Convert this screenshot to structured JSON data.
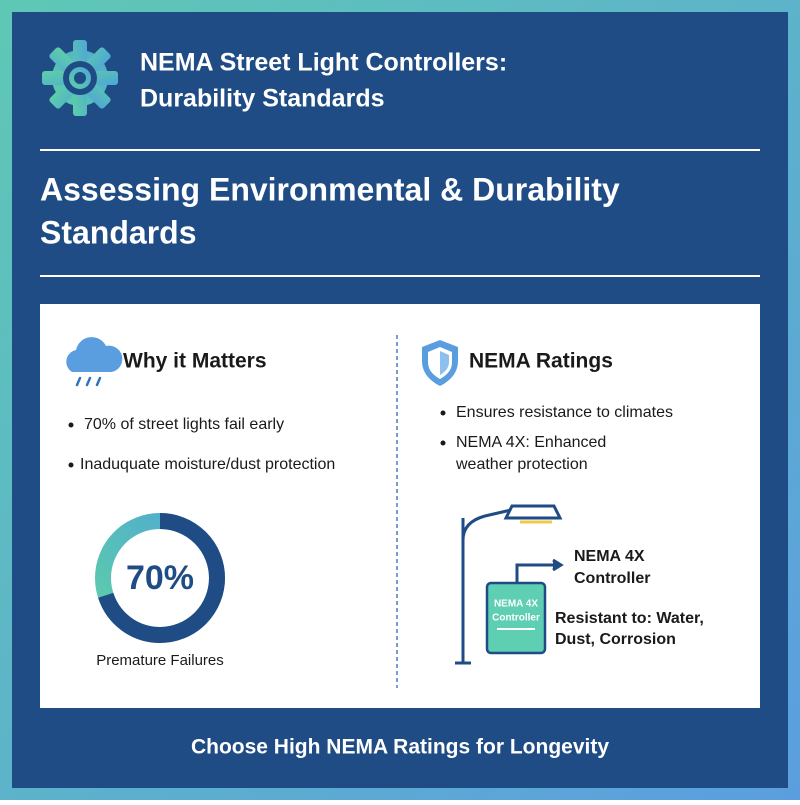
{
  "header": {
    "title": [
      "NEMA Street Light Controllers:",
      "Durability Standards"
    ]
  },
  "heading": [
    "Assessing Environmental & Durability",
    "Standards"
  ],
  "left": {
    "title": "Why it Matters",
    "bullets": [
      "70% of street lights fail early",
      "Inaduquate moisture/dust protection"
    ],
    "donut": {
      "value": 70,
      "value_label": "70%",
      "caption": "Premature Failures"
    }
  },
  "right": {
    "title": "NEMA Ratings",
    "bullets": [
      [
        "Ensures resistance to climates"
      ],
      [
        "NEMA 4X: Enhanced",
        "weather protection"
      ]
    ],
    "diagram": {
      "box_label": [
        "NEMA 4X",
        "Controller"
      ],
      "callout": [
        "NEMA 4X",
        "Controller"
      ],
      "resistance": [
        "Resistant to: Water,",
        "Dust, Corrosion"
      ]
    }
  },
  "footer": "Choose High NEMA Ratings for Longevity"
}
